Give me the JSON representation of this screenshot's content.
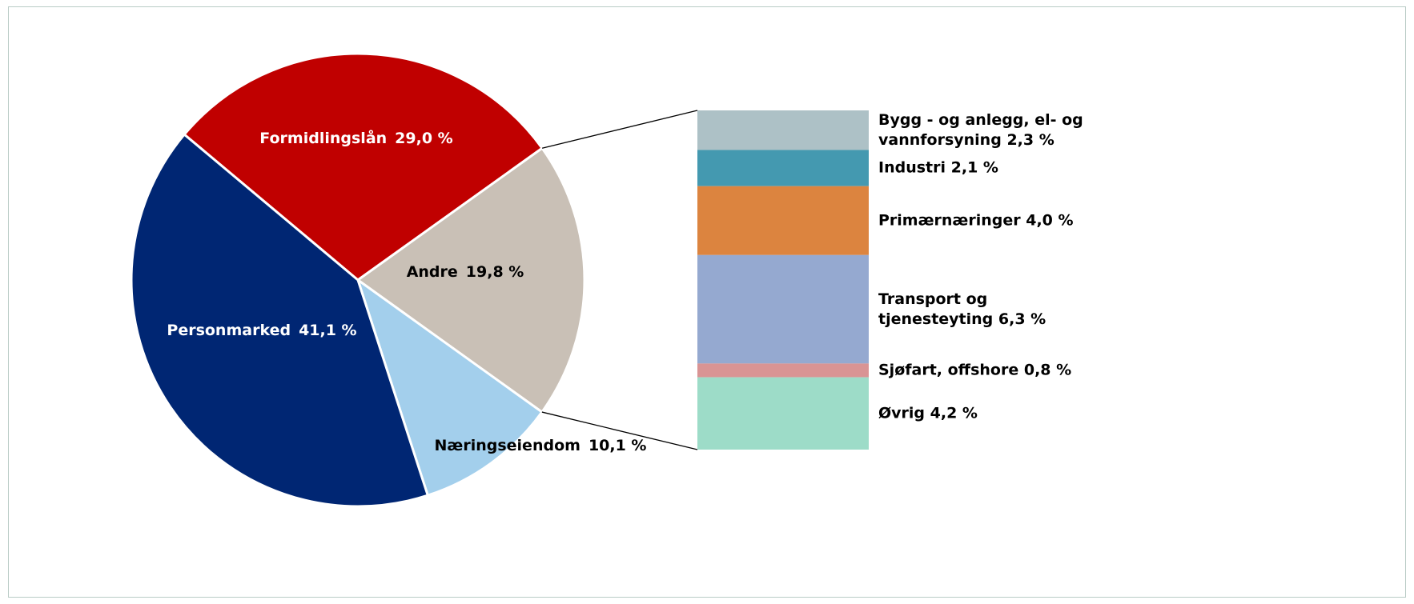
{
  "chart_data": {
    "type": "pie-of-bar",
    "categories": [
      "Formidlingslån",
      "Andre",
      "Næringseiendom",
      "Personmarked"
    ],
    "values": [
      29.0,
      19.8,
      10.1,
      41.1
    ],
    "value_labels": [
      "29,0 %",
      "19,8 %",
      "10,1 %",
      "41,1 %"
    ],
    "colors": [
      "#c00000",
      "#c9c0b6",
      "#a3cfec",
      "#002673"
    ],
    "breakdown": {
      "categories": [
        "Bygg - og anlegg, el- og vannforsyning",
        "Industri",
        "Primærnæringer",
        "Transport og tjenesteyting",
        "Sjøfart, offshore",
        "Øvrig"
      ],
      "values": [
        2.3,
        2.1,
        4.0,
        6.3,
        0.8,
        4.2
      ],
      "value_labels": [
        "2,3 %",
        "2,1 %",
        "4,0 %",
        "6,3 %",
        "0,8 %",
        "4,2 %"
      ],
      "colors": [
        "#adc1c6",
        "#4499b0",
        "#dc843f",
        "#95a9d0",
        "#d99494",
        "#9ddcc8"
      ]
    }
  }
}
